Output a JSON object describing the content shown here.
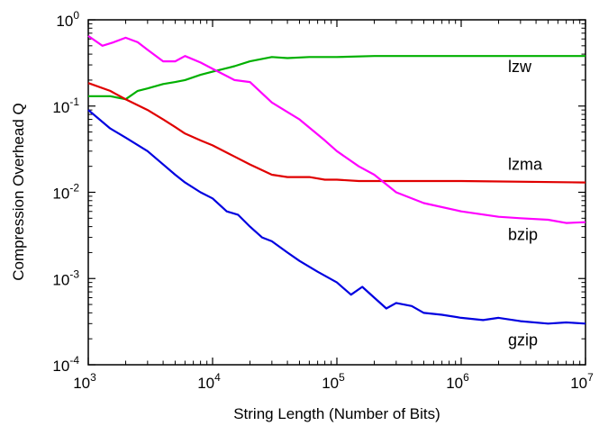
{
  "chart_data": {
    "type": "line",
    "xlabel": "String Length (Number of Bits)",
    "ylabel": "Compression Overhead Q",
    "x_scale": "log",
    "y_scale": "log",
    "xlim": [
      1000,
      10000000
    ],
    "ylim": [
      0.0001,
      1
    ],
    "x_ticks": [
      {
        "base": "10",
        "exp": "3",
        "value": 1000
      },
      {
        "base": "10",
        "exp": "4",
        "value": 10000
      },
      {
        "base": "10",
        "exp": "5",
        "value": 100000
      },
      {
        "base": "10",
        "exp": "6",
        "value": 1000000
      },
      {
        "base": "10",
        "exp": "7",
        "value": 10000000
      }
    ],
    "y_ticks": [
      {
        "base": "10",
        "exp": "0",
        "value": 1
      },
      {
        "base": "10",
        "exp": "-1",
        "value": 0.1
      },
      {
        "base": "10",
        "exp": "-2",
        "value": 0.01
      },
      {
        "base": "10",
        "exp": "-3",
        "value": 0.001
      },
      {
        "base": "10",
        "exp": "-4",
        "value": 0.0001
      }
    ],
    "grid": false,
    "legend": "inline labels at right end of each series",
    "series": [
      {
        "name": "lzw",
        "color": "#00b000",
        "x": [
          1000,
          1500,
          2000,
          2500,
          3000,
          4000,
          5000,
          6000,
          8000,
          10000,
          15000,
          20000,
          30000,
          40000,
          60000,
          100000,
          200000,
          500000,
          1000000,
          10000000
        ],
        "y": [
          0.13,
          0.13,
          0.12,
          0.15,
          0.16,
          0.18,
          0.19,
          0.2,
          0.23,
          0.25,
          0.29,
          0.33,
          0.37,
          0.36,
          0.37,
          0.37,
          0.38,
          0.38,
          0.38,
          0.38
        ]
      },
      {
        "name": "lzma",
        "color": "#e00000",
        "x": [
          1000,
          1500,
          2000,
          3000,
          4000,
          5000,
          6000,
          8000,
          10000,
          15000,
          20000,
          30000,
          40000,
          50000,
          60000,
          80000,
          100000,
          150000,
          200000,
          500000,
          1000000,
          10000000
        ],
        "y": [
          0.185,
          0.15,
          0.12,
          0.09,
          0.07,
          0.057,
          0.048,
          0.04,
          0.035,
          0.026,
          0.021,
          0.016,
          0.015,
          0.015,
          0.015,
          0.014,
          0.014,
          0.0135,
          0.0135,
          0.0135,
          0.0135,
          0.013
        ]
      },
      {
        "name": "bzip",
        "color": "#ff00ff",
        "x": [
          1000,
          1300,
          1600,
          2000,
          2500,
          3000,
          4000,
          5000,
          6000,
          8000,
          10000,
          15000,
          20000,
          30000,
          50000,
          80000,
          100000,
          150000,
          200000,
          300000,
          500000,
          1000000,
          2000000,
          3000000,
          5000000,
          7000000,
          10000000
        ],
        "y": [
          0.65,
          0.5,
          0.55,
          0.62,
          0.55,
          0.45,
          0.33,
          0.33,
          0.38,
          0.32,
          0.27,
          0.2,
          0.19,
          0.11,
          0.07,
          0.04,
          0.03,
          0.02,
          0.016,
          0.01,
          0.0075,
          0.006,
          0.0052,
          0.005,
          0.0048,
          0.0044,
          0.0045
        ]
      },
      {
        "name": "gzip",
        "color": "#0000e0",
        "x": [
          1000,
          1500,
          2000,
          3000,
          4000,
          5000,
          6000,
          8000,
          10000,
          13000,
          16000,
          20000,
          25000,
          30000,
          40000,
          50000,
          70000,
          100000,
          130000,
          160000,
          200000,
          250000,
          300000,
          400000,
          500000,
          700000,
          1000000,
          1500000,
          2000000,
          3000000,
          5000000,
          7000000,
          10000000
        ],
        "y": [
          0.09,
          0.055,
          0.043,
          0.03,
          0.021,
          0.016,
          0.013,
          0.01,
          0.0085,
          0.006,
          0.0055,
          0.004,
          0.003,
          0.0027,
          0.002,
          0.0016,
          0.0012,
          0.0009,
          0.00065,
          0.0008,
          0.0006,
          0.00045,
          0.00052,
          0.00048,
          0.0004,
          0.00038,
          0.00035,
          0.00033,
          0.00035,
          0.00032,
          0.0003,
          0.00031,
          0.0003
        ]
      }
    ]
  }
}
